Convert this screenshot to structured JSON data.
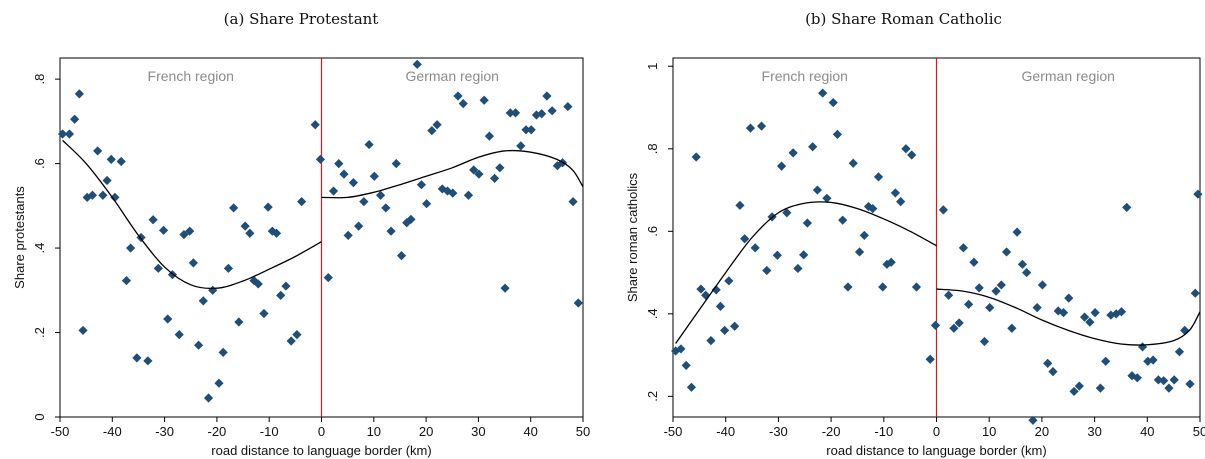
{
  "chart_data": [
    {
      "type": "scatter",
      "title": "(a) Share Protestant",
      "xlabel": "road distance to language border (km)",
      "ylabel": "Share protestants",
      "xlim": [
        -50,
        50
      ],
      "ylim": [
        0,
        0.85
      ],
      "xticks": [
        -50,
        -40,
        -30,
        -20,
        -10,
        0,
        10,
        20,
        30,
        40,
        50
      ],
      "yticks": [
        0,
        0.2,
        0.4,
        0.6,
        0.8
      ],
      "ytick_labels": [
        "0",
        ".2",
        ".4",
        ".6",
        ".8"
      ],
      "regions": [
        {
          "label": "French region",
          "x": -25
        },
        {
          "label": "German region",
          "x": 25
        }
      ],
      "border_x": 0,
      "grid": false,
      "colors": {
        "points": "#1f4e79",
        "fit": "#000000",
        "border": "#d7191c"
      },
      "points": [
        [
          -49.5,
          0.67
        ],
        [
          -48.2,
          0.67
        ],
        [
          -47.2,
          0.705
        ],
        [
          -46.3,
          0.765
        ],
        [
          -45.6,
          0.205
        ],
        [
          -44.8,
          0.52
        ],
        [
          -43.8,
          0.525
        ],
        [
          -42.8,
          0.63
        ],
        [
          -41.8,
          0.525
        ],
        [
          -41,
          0.56
        ],
        [
          -40.2,
          0.61
        ],
        [
          -39.5,
          0.52
        ],
        [
          -38.3,
          0.605
        ],
        [
          -37.3,
          0.323
        ],
        [
          -36.5,
          0.4
        ],
        [
          -35.3,
          0.14
        ],
        [
          -34.5,
          0.425
        ],
        [
          -33.2,
          0.133
        ],
        [
          -32.2,
          0.467
        ],
        [
          -31.2,
          0.352
        ],
        [
          -30.2,
          0.442
        ],
        [
          -29.4,
          0.232
        ],
        [
          -28.5,
          0.337
        ],
        [
          -27.2,
          0.195
        ],
        [
          -26.3,
          0.432
        ],
        [
          -25.2,
          0.44
        ],
        [
          -24.5,
          0.365
        ],
        [
          -23.5,
          0.17
        ],
        [
          -22.6,
          0.275
        ],
        [
          -21.6,
          0.045
        ],
        [
          -20.8,
          0.3
        ],
        [
          -19.6,
          0.08
        ],
        [
          -18.8,
          0.153
        ],
        [
          -17.8,
          0.352
        ],
        [
          -16.8,
          0.495
        ],
        [
          -15.8,
          0.225
        ],
        [
          -14.6,
          0.452
        ],
        [
          -13.7,
          0.435
        ],
        [
          -12.9,
          0.323
        ],
        [
          -12.1,
          0.315
        ],
        [
          -11,
          0.245
        ],
        [
          -10.2,
          0.497
        ],
        [
          -9.4,
          0.44
        ],
        [
          -8.6,
          0.435
        ],
        [
          -7.8,
          0.288
        ],
        [
          -6.8,
          0.31
        ],
        [
          -5.8,
          0.18
        ],
        [
          -4.7,
          0.195
        ],
        [
          -3.8,
          0.51
        ],
        [
          -1.2,
          0.692
        ],
        [
          -0.2,
          0.61
        ],
        [
          1.3,
          0.33
        ],
        [
          2.3,
          0.535
        ],
        [
          3.3,
          0.6
        ],
        [
          4.3,
          0.575
        ],
        [
          5.1,
          0.43
        ],
        [
          6.1,
          0.555
        ],
        [
          7.1,
          0.452
        ],
        [
          8.1,
          0.51
        ],
        [
          9.1,
          0.645
        ],
        [
          10.1,
          0.57
        ],
        [
          11.3,
          0.525
        ],
        [
          12.3,
          0.495
        ],
        [
          13.3,
          0.44
        ],
        [
          14.3,
          0.6
        ],
        [
          15.3,
          0.382
        ],
        [
          16.3,
          0.46
        ],
        [
          17.1,
          0.468
        ],
        [
          18.3,
          0.835
        ],
        [
          19.1,
          0.55
        ],
        [
          20.1,
          0.505
        ],
        [
          21.1,
          0.678
        ],
        [
          22.1,
          0.692
        ],
        [
          23.1,
          0.54
        ],
        [
          24.1,
          0.535
        ],
        [
          25.1,
          0.53
        ],
        [
          26.1,
          0.76
        ],
        [
          27.1,
          0.742
        ],
        [
          28.1,
          0.525
        ],
        [
          29.1,
          0.585
        ],
        [
          30.1,
          0.575
        ],
        [
          31.1,
          0.75
        ],
        [
          32.1,
          0.665
        ],
        [
          33.1,
          0.565
        ],
        [
          34.1,
          0.59
        ],
        [
          35.1,
          0.305
        ],
        [
          36.1,
          0.72
        ],
        [
          37.1,
          0.72
        ],
        [
          38.1,
          0.642
        ],
        [
          39.1,
          0.68
        ],
        [
          40.1,
          0.68
        ],
        [
          41.1,
          0.715
        ],
        [
          42.1,
          0.718
        ],
        [
          43.1,
          0.76
        ],
        [
          44.1,
          0.725
        ],
        [
          45.1,
          0.595
        ],
        [
          46.1,
          0.602
        ],
        [
          47.1,
          0.735
        ],
        [
          48.1,
          0.51
        ],
        [
          49.1,
          0.27
        ]
      ],
      "fit_left": [
        [
          -49.5,
          0.655
        ],
        [
          -45,
          0.6
        ],
        [
          -40,
          0.52
        ],
        [
          -35,
          0.43
        ],
        [
          -30,
          0.355
        ],
        [
          -25,
          0.313
        ],
        [
          -20,
          0.305
        ],
        [
          -15,
          0.322
        ],
        [
          -10,
          0.35
        ],
        [
          -5,
          0.38
        ],
        [
          0,
          0.415
        ]
      ],
      "fit_right": [
        [
          0,
          0.52
        ],
        [
          5,
          0.52
        ],
        [
          10,
          0.532
        ],
        [
          15,
          0.55
        ],
        [
          20,
          0.57
        ],
        [
          25,
          0.59
        ],
        [
          30,
          0.615
        ],
        [
          35,
          0.63
        ],
        [
          40,
          0.627
        ],
        [
          45,
          0.61
        ],
        [
          48,
          0.585
        ],
        [
          50,
          0.545
        ]
      ]
    },
    {
      "type": "scatter",
      "title": "(b) Share Roman Catholic",
      "xlabel": "road distance to language border (km)",
      "ylabel": "Share roman catholics",
      "xlim": [
        -50,
        50
      ],
      "ylim": [
        0.15,
        1.02
      ],
      "xticks": [
        -50,
        -40,
        -30,
        -20,
        -10,
        0,
        10,
        20,
        30,
        40,
        50
      ],
      "yticks": [
        0.2,
        0.4,
        0.6,
        0.8,
        1
      ],
      "ytick_labels": [
        ".2",
        ".4",
        ".6",
        ".8",
        "1"
      ],
      "regions": [
        {
          "label": "French region",
          "x": -25
        },
        {
          "label": "German region",
          "x": 25
        }
      ],
      "border_x": 0,
      "grid": false,
      "colors": {
        "points": "#1f4e79",
        "fit": "#000000",
        "border": "#d7191c"
      },
      "points": [
        [
          -49.5,
          0.31
        ],
        [
          -48.5,
          0.315
        ],
        [
          -47.5,
          0.275
        ],
        [
          -46.5,
          0.222
        ],
        [
          -45.6,
          0.78
        ],
        [
          -44.7,
          0.46
        ],
        [
          -43.8,
          0.445
        ],
        [
          -42.8,
          0.335
        ],
        [
          -41.8,
          0.458
        ],
        [
          -41,
          0.418
        ],
        [
          -40.2,
          0.36
        ],
        [
          -39.4,
          0.48
        ],
        [
          -38.3,
          0.37
        ],
        [
          -37.3,
          0.663
        ],
        [
          -36.4,
          0.582
        ],
        [
          -35.3,
          0.85
        ],
        [
          -34.4,
          0.56
        ],
        [
          -33.2,
          0.855
        ],
        [
          -32.2,
          0.505
        ],
        [
          -31.2,
          0.635
        ],
        [
          -30.2,
          0.542
        ],
        [
          -29.4,
          0.758
        ],
        [
          -28.4,
          0.645
        ],
        [
          -27.2,
          0.79
        ],
        [
          -26.3,
          0.51
        ],
        [
          -25.2,
          0.543
        ],
        [
          -24.5,
          0.62
        ],
        [
          -23.5,
          0.805
        ],
        [
          -22.6,
          0.7
        ],
        [
          -21.6,
          0.935
        ],
        [
          -20.8,
          0.68
        ],
        [
          -19.6,
          0.912
        ],
        [
          -18.8,
          0.835
        ],
        [
          -17.8,
          0.627
        ],
        [
          -16.8,
          0.465
        ],
        [
          -15.8,
          0.765
        ],
        [
          -14.6,
          0.55
        ],
        [
          -13.7,
          0.59
        ],
        [
          -12.9,
          0.66
        ],
        [
          -12.1,
          0.655
        ],
        [
          -11,
          0.732
        ],
        [
          -10.2,
          0.465
        ],
        [
          -9.4,
          0.52
        ],
        [
          -8.6,
          0.525
        ],
        [
          -7.8,
          0.693
        ],
        [
          -6.8,
          0.672
        ],
        [
          -5.8,
          0.8
        ],
        [
          -4.7,
          0.785
        ],
        [
          -3.8,
          0.465
        ],
        [
          -1.2,
          0.29
        ],
        [
          -0.2,
          0.372
        ],
        [
          1.3,
          0.652
        ],
        [
          2.3,
          0.445
        ],
        [
          3.3,
          0.365
        ],
        [
          4.3,
          0.378
        ],
        [
          5.1,
          0.56
        ],
        [
          6.1,
          0.423
        ],
        [
          7.1,
          0.525
        ],
        [
          8.1,
          0.463
        ],
        [
          9.1,
          0.333
        ],
        [
          10.1,
          0.415
        ],
        [
          11.3,
          0.455
        ],
        [
          12.3,
          0.47
        ],
        [
          13.3,
          0.55
        ],
        [
          14.3,
          0.365
        ],
        [
          15.3,
          0.598
        ],
        [
          16.3,
          0.52
        ],
        [
          17.1,
          0.5
        ],
        [
          18.3,
          0.142
        ],
        [
          19.1,
          0.415
        ],
        [
          20.1,
          0.47
        ],
        [
          21.1,
          0.28
        ],
        [
          22.1,
          0.26
        ],
        [
          23.1,
          0.407
        ],
        [
          24.1,
          0.403
        ],
        [
          25.1,
          0.438
        ],
        [
          26.1,
          0.212
        ],
        [
          27.1,
          0.225
        ],
        [
          28.1,
          0.392
        ],
        [
          29.1,
          0.38
        ],
        [
          30.1,
          0.403
        ],
        [
          31.1,
          0.22
        ],
        [
          32.1,
          0.285
        ],
        [
          33.1,
          0.397
        ],
        [
          34.1,
          0.4
        ],
        [
          35.1,
          0.405
        ],
        [
          36.1,
          0.658
        ],
        [
          37.1,
          0.25
        ],
        [
          38.1,
          0.245
        ],
        [
          39.1,
          0.32
        ],
        [
          40.1,
          0.285
        ],
        [
          41.1,
          0.288
        ],
        [
          42.1,
          0.24
        ],
        [
          43.1,
          0.238
        ],
        [
          44.1,
          0.22
        ],
        [
          45.1,
          0.24
        ],
        [
          46.1,
          0.308
        ],
        [
          47.1,
          0.36
        ],
        [
          48.1,
          0.23
        ],
        [
          49.1,
          0.45
        ],
        [
          49.6,
          0.69
        ]
      ],
      "fit_left": [
        [
          -49.5,
          0.328
        ],
        [
          -45,
          0.41
        ],
        [
          -40,
          0.5
        ],
        [
          -35,
          0.585
        ],
        [
          -30,
          0.645
        ],
        [
          -25,
          0.668
        ],
        [
          -20,
          0.67
        ],
        [
          -15,
          0.655
        ],
        [
          -10,
          0.63
        ],
        [
          -5,
          0.6
        ],
        [
          0,
          0.565
        ]
      ],
      "fit_right": [
        [
          0,
          0.46
        ],
        [
          5,
          0.455
        ],
        [
          10,
          0.44
        ],
        [
          15,
          0.415
        ],
        [
          20,
          0.385
        ],
        [
          25,
          0.36
        ],
        [
          30,
          0.34
        ],
        [
          35,
          0.327
        ],
        [
          40,
          0.325
        ],
        [
          45,
          0.335
        ],
        [
          48,
          0.36
        ],
        [
          50,
          0.405
        ]
      ]
    }
  ]
}
